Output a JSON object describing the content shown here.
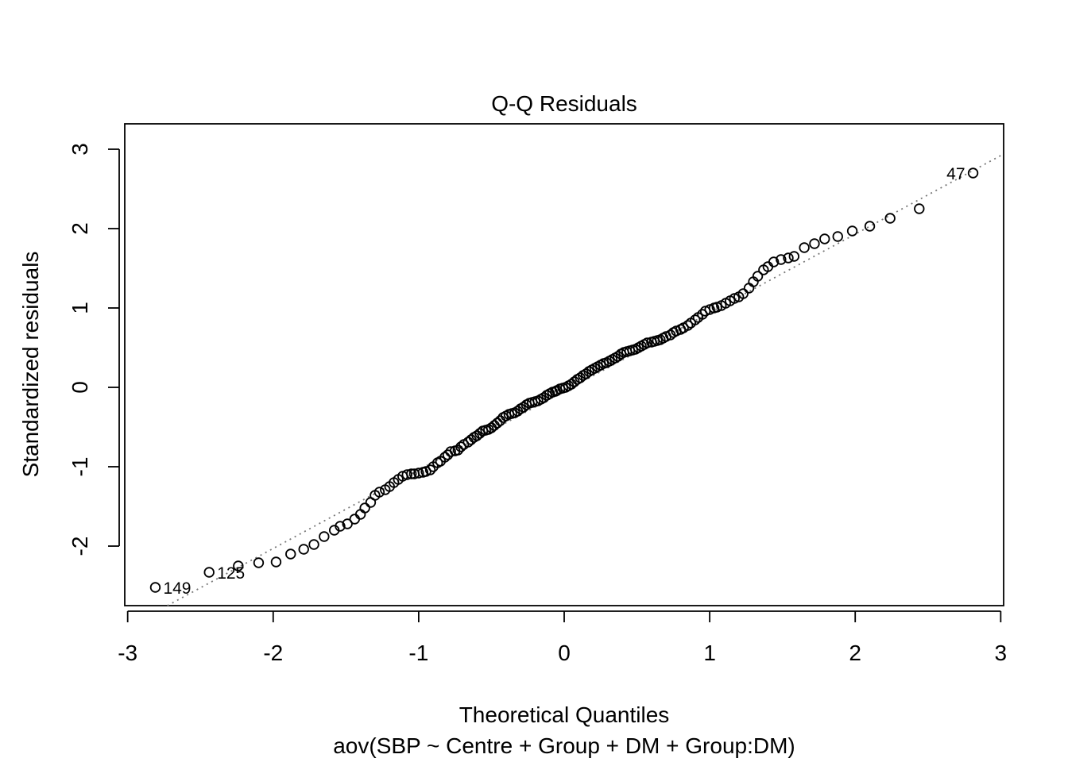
{
  "chart_data": {
    "type": "scatter",
    "title": "Q-Q Residuals",
    "xlabel": "Theoretical Quantiles",
    "ylabel": "Standardized residuals",
    "subtitle": "aov(SBP ~ Centre + Group + DM + Group:DM)",
    "xlim": [
      -3.02,
      3.02
    ],
    "ylim": [
      -2.75,
      3.32
    ],
    "x_ticks": [
      "-3",
      "-2",
      "-1",
      "0",
      "1",
      "2",
      "3"
    ],
    "y_ticks": [
      "-2",
      "-1",
      "0",
      "1",
      "2",
      "3"
    ],
    "grid": false,
    "reference_line": {
      "slope": 0.99,
      "intercept": -0.05,
      "style": "dotted",
      "color": "#777777"
    },
    "point_style": {
      "shape": "open-circle",
      "color": "#000000"
    },
    "labeled_points": [
      {
        "label": "47",
        "x": 2.81,
        "y": 2.7,
        "side": "left"
      },
      {
        "label": "125",
        "x": -2.44,
        "y": -2.33,
        "side": "right"
      },
      {
        "label": "149",
        "x": -2.81,
        "y": -2.52,
        "side": "right"
      }
    ],
    "points": [
      [
        -2.81,
        -2.52
      ],
      [
        -2.44,
        -2.33
      ],
      [
        -2.24,
        -2.25
      ],
      [
        -2.1,
        -2.21
      ],
      [
        -1.98,
        -2.2
      ],
      [
        -1.88,
        -2.1
      ],
      [
        -1.79,
        -2.04
      ],
      [
        -1.72,
        -1.98
      ],
      [
        -1.65,
        -1.88
      ],
      [
        -1.58,
        -1.8
      ],
      [
        -1.54,
        -1.75
      ],
      [
        -1.49,
        -1.72
      ],
      [
        -1.44,
        -1.66
      ],
      [
        -1.4,
        -1.6
      ],
      [
        -1.37,
        -1.52
      ],
      [
        -1.33,
        -1.45
      ],
      [
        -1.3,
        -1.36
      ],
      [
        -1.27,
        -1.32
      ],
      [
        -1.23,
        -1.29
      ],
      [
        -1.2,
        -1.25
      ],
      [
        -1.17,
        -1.2
      ],
      [
        -1.14,
        -1.16
      ],
      [
        -1.11,
        -1.12
      ],
      [
        -1.08,
        -1.1
      ],
      [
        -1.05,
        -1.09
      ],
      [
        -1.03,
        -1.09
      ],
      [
        -1.0,
        -1.08
      ],
      [
        -0.97,
        -1.07
      ],
      [
        -0.95,
        -1.06
      ],
      [
        -0.92,
        -1.04
      ],
      [
        -0.9,
        -1.0
      ],
      [
        -0.87,
        -0.95
      ],
      [
        -0.85,
        -0.93
      ],
      [
        -0.82,
        -0.88
      ],
      [
        -0.8,
        -0.85
      ],
      [
        -0.78,
        -0.81
      ],
      [
        -0.75,
        -0.8
      ],
      [
        -0.73,
        -0.79
      ],
      [
        -0.71,
        -0.75
      ],
      [
        -0.69,
        -0.72
      ],
      [
        -0.66,
        -0.69
      ],
      [
        -0.64,
        -0.66
      ],
      [
        -0.62,
        -0.63
      ],
      [
        -0.6,
        -0.61
      ],
      [
        -0.58,
        -0.58
      ],
      [
        -0.56,
        -0.55
      ],
      [
        -0.54,
        -0.54
      ],
      [
        -0.52,
        -0.53
      ],
      [
        -0.5,
        -0.51
      ],
      [
        -0.48,
        -0.48
      ],
      [
        -0.46,
        -0.45
      ],
      [
        -0.44,
        -0.42
      ],
      [
        -0.42,
        -0.38
      ],
      [
        -0.4,
        -0.36
      ],
      [
        -0.38,
        -0.34
      ],
      [
        -0.36,
        -0.33
      ],
      [
        -0.34,
        -0.32
      ],
      [
        -0.32,
        -0.3
      ],
      [
        -0.3,
        -0.27
      ],
      [
        -0.28,
        -0.25
      ],
      [
        -0.26,
        -0.22
      ],
      [
        -0.24,
        -0.2
      ],
      [
        -0.22,
        -0.19
      ],
      [
        -0.2,
        -0.18
      ],
      [
        -0.18,
        -0.17
      ],
      [
        -0.16,
        -0.15
      ],
      [
        -0.14,
        -0.13
      ],
      [
        -0.12,
        -0.1
      ],
      [
        -0.1,
        -0.08
      ],
      [
        -0.08,
        -0.06
      ],
      [
        -0.06,
        -0.05
      ],
      [
        -0.05,
        -0.04
      ],
      [
        -0.03,
        -0.02
      ],
      [
        -0.01,
        -0.01
      ],
      [
        0.01,
        0.0
      ],
      [
        0.03,
        0.02
      ],
      [
        0.05,
        0.04
      ],
      [
        0.07,
        0.07
      ],
      [
        0.09,
        0.1
      ],
      [
        0.11,
        0.12
      ],
      [
        0.13,
        0.15
      ],
      [
        0.15,
        0.17
      ],
      [
        0.17,
        0.2
      ],
      [
        0.19,
        0.22
      ],
      [
        0.21,
        0.24
      ],
      [
        0.23,
        0.26
      ],
      [
        0.25,
        0.28
      ],
      [
        0.27,
        0.3
      ],
      [
        0.29,
        0.31
      ],
      [
        0.31,
        0.33
      ],
      [
        0.33,
        0.35
      ],
      [
        0.35,
        0.37
      ],
      [
        0.37,
        0.39
      ],
      [
        0.39,
        0.42
      ],
      [
        0.41,
        0.44
      ],
      [
        0.43,
        0.45
      ],
      [
        0.45,
        0.46
      ],
      [
        0.47,
        0.47
      ],
      [
        0.49,
        0.48
      ],
      [
        0.51,
        0.5
      ],
      [
        0.53,
        0.52
      ],
      [
        0.55,
        0.54
      ],
      [
        0.57,
        0.56
      ],
      [
        0.6,
        0.57
      ],
      [
        0.62,
        0.58
      ],
      [
        0.64,
        0.59
      ],
      [
        0.66,
        0.6
      ],
      [
        0.68,
        0.62
      ],
      [
        0.7,
        0.64
      ],
      [
        0.73,
        0.66
      ],
      [
        0.75,
        0.69
      ],
      [
        0.77,
        0.71
      ],
      [
        0.8,
        0.73
      ],
      [
        0.82,
        0.75
      ],
      [
        0.85,
        0.78
      ],
      [
        0.87,
        0.81
      ],
      [
        0.9,
        0.85
      ],
      [
        0.92,
        0.88
      ],
      [
        0.95,
        0.92
      ],
      [
        0.97,
        0.96
      ],
      [
        1.0,
        0.98
      ],
      [
        1.03,
        1.0
      ],
      [
        1.05,
        1.01
      ],
      [
        1.08,
        1.03
      ],
      [
        1.11,
        1.06
      ],
      [
        1.14,
        1.09
      ],
      [
        1.17,
        1.12
      ],
      [
        1.2,
        1.14
      ],
      [
        1.23,
        1.18
      ],
      [
        1.27,
        1.25
      ],
      [
        1.3,
        1.33
      ],
      [
        1.33,
        1.4
      ],
      [
        1.37,
        1.48
      ],
      [
        1.4,
        1.52
      ],
      [
        1.44,
        1.58
      ],
      [
        1.49,
        1.61
      ],
      [
        1.54,
        1.63
      ],
      [
        1.58,
        1.65
      ],
      [
        1.65,
        1.76
      ],
      [
        1.72,
        1.81
      ],
      [
        1.79,
        1.87
      ],
      [
        1.88,
        1.9
      ],
      [
        1.98,
        1.97
      ],
      [
        2.1,
        2.03
      ],
      [
        2.24,
        2.13
      ],
      [
        2.44,
        2.25
      ],
      [
        2.81,
        2.7
      ]
    ]
  }
}
